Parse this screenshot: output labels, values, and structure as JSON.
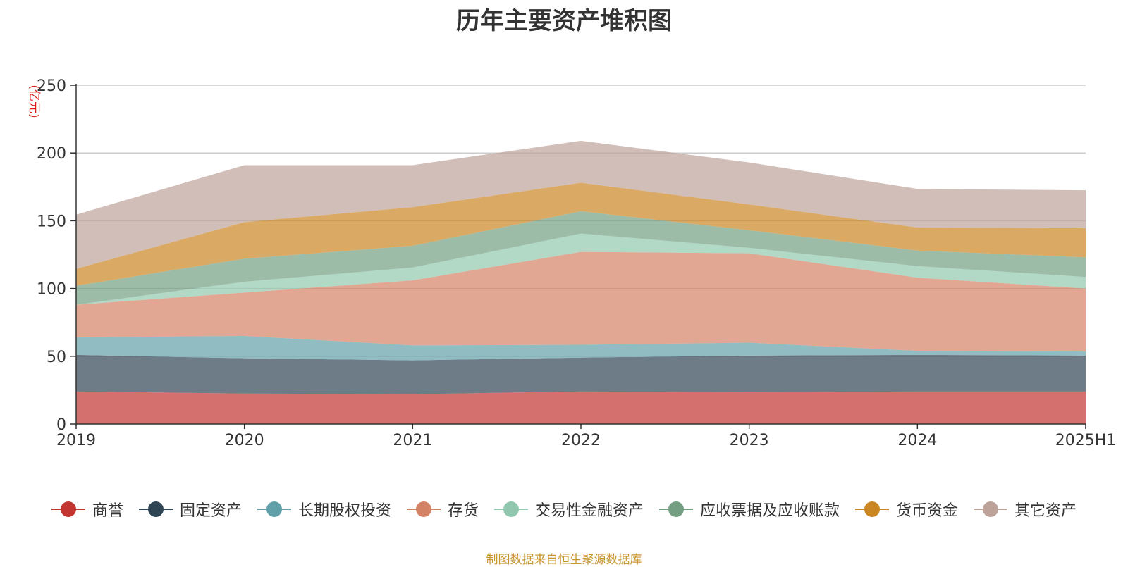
{
  "chart_data": {
    "type": "area",
    "stacked": true,
    "title": "历年主要资产堆积图",
    "unit": "(亿元)",
    "categories": [
      "2019",
      "2020",
      "2021",
      "2022",
      "2023",
      "2024",
      "2025H1"
    ],
    "ylim": [
      0,
      250
    ],
    "yticks": [
      "0",
      "50",
      "100",
      "150",
      "200",
      "250"
    ],
    "grid": true,
    "legend_position": "bottom",
    "series": [
      {
        "name": "商誉",
        "color": "#c23531",
        "values": [
          24,
          22.5,
          22,
          24,
          23.5,
          24,
          24
        ]
      },
      {
        "name": "固定资产",
        "color": "#2f4554",
        "values": [
          27,
          26,
          25,
          25,
          27,
          27,
          26.5
        ]
      },
      {
        "name": "长期股权投资",
        "color": "#61a0a8",
        "values": [
          13,
          16.5,
          11,
          9.5,
          9.5,
          3,
          3
        ]
      },
      {
        "name": "存货",
        "color": "#d48265",
        "values": [
          24,
          32,
          48,
          68.5,
          66,
          54,
          46.5
        ]
      },
      {
        "name": "交易性金融资产",
        "color": "#91c7ae",
        "values": [
          0,
          8,
          9.5,
          13.5,
          4,
          8.5,
          8.5
        ]
      },
      {
        "name": "应收票据及应收账款",
        "color": "#749f83",
        "values": [
          14,
          17,
          16,
          16.5,
          13,
          11.5,
          14.5
        ]
      },
      {
        "name": "货币资金",
        "color": "#ca8622",
        "values": [
          12.5,
          27,
          28.5,
          21,
          19,
          17,
          21.5
        ]
      },
      {
        "name": "其它资产",
        "color": "#bda29a",
        "values": [
          40,
          42,
          31,
          31,
          31,
          28.5,
          28
        ]
      }
    ]
  },
  "footer": {
    "source": "制图数据来自恒生聚源数据库"
  }
}
